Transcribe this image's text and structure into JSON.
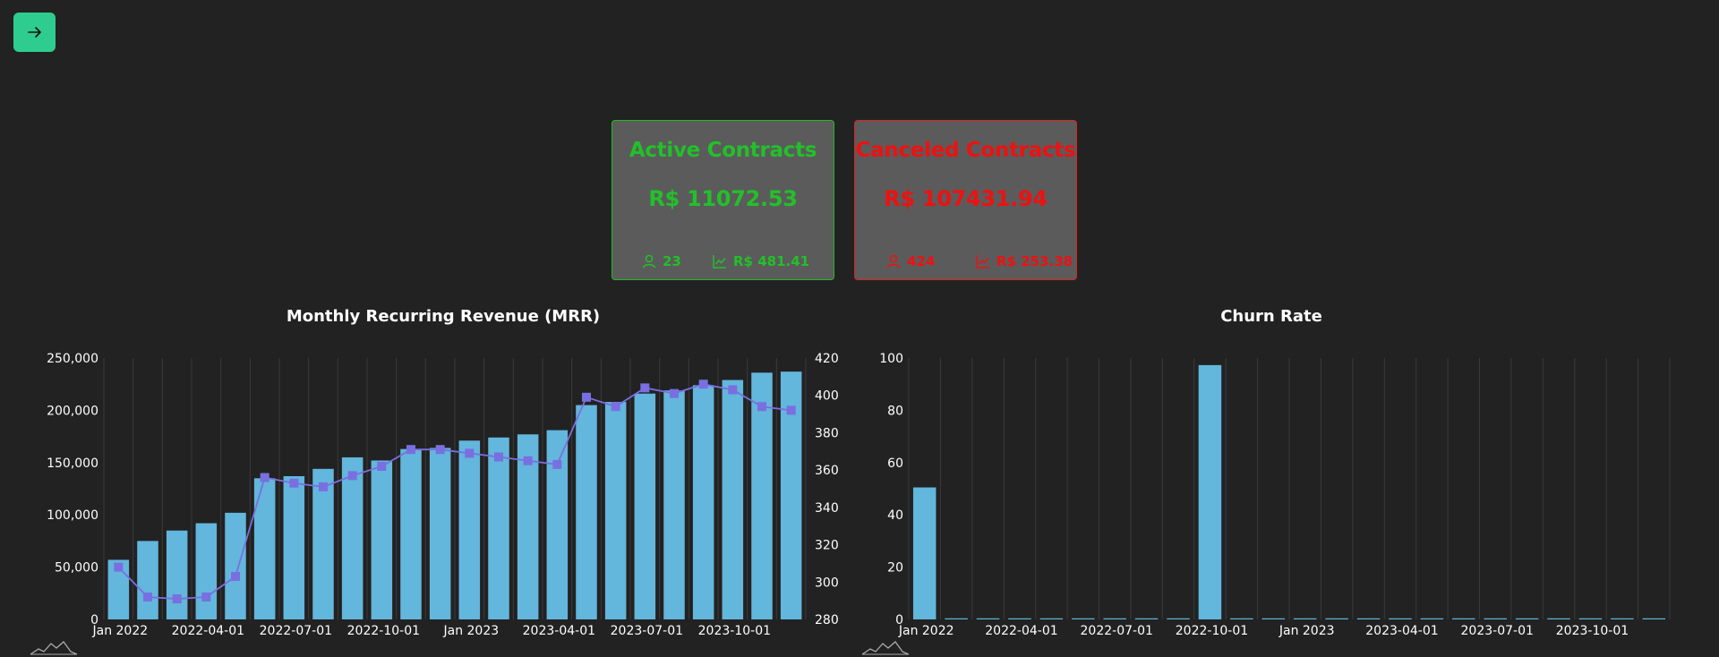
{
  "nav": {
    "icon": "arrow-right-icon"
  },
  "cards": {
    "active": {
      "title": "Active Contracts",
      "value": "R$ 11072.53",
      "count": "23",
      "average": "R$ 481.41",
      "color": "#22c02a"
    },
    "canceled": {
      "title": "Canceled Contracts",
      "value": "R$ 107431.94",
      "count": "424",
      "average": "R$ 253.38",
      "color": "#ee1111"
    }
  },
  "chart_data": [
    {
      "type": "bar",
      "title": "Monthly Recurring Revenue (MRR)",
      "x_tick_labels": [
        "Jan 2022",
        "2022-04-01",
        "2022-07-01",
        "2022-10-01",
        "Jan 2023",
        "2023-04-01",
        "2023-07-01",
        "2023-10-01"
      ],
      "categories": [
        "2022-01",
        "2022-02",
        "2022-03",
        "2022-04",
        "2022-05",
        "2022-06",
        "2022-07",
        "2022-08",
        "2022-09",
        "2022-10",
        "2022-11",
        "2022-12",
        "2023-01",
        "2023-02",
        "2023-03",
        "2023-04",
        "2023-05",
        "2023-06",
        "2023-07",
        "2023-08",
        "2023-09",
        "2023-10",
        "2023-11",
        "2023-12"
      ],
      "series": [
        {
          "type": "bar",
          "axis": "left",
          "color": "#63b6dc",
          "values": [
            57000,
            75000,
            85000,
            92000,
            102000,
            135000,
            137000,
            144000,
            155000,
            152000,
            163000,
            164000,
            171000,
            174000,
            177000,
            181000,
            205000,
            208000,
            216000,
            219000,
            224000,
            229000,
            236000,
            237000
          ]
        },
        {
          "type": "line",
          "axis": "right",
          "color": "#7a6fe0",
          "values": [
            308,
            292,
            291,
            292,
            303,
            356,
            353,
            351,
            357,
            362,
            371,
            371,
            369,
            367,
            365,
            363,
            399,
            394,
            404,
            401,
            406,
            403,
            394,
            392
          ]
        }
      ],
      "ylim": [
        0,
        250000
      ],
      "y2lim": [
        280,
        420
      ],
      "y_ticks": [
        "0",
        "50,000",
        "100,000",
        "150,000",
        "200,000",
        "250,000"
      ],
      "y2_ticks": [
        "280",
        "300",
        "320",
        "340",
        "360",
        "380",
        "400",
        "420"
      ],
      "grid": "vertical"
    },
    {
      "type": "bar",
      "title": "Churn Rate",
      "x_tick_labels": [
        "Jan 2022",
        "2022-04-01",
        "2022-07-01",
        "2022-10-01",
        "Jan 2023",
        "2023-04-01",
        "2023-07-01",
        "2023-10-01"
      ],
      "categories": [
        "2022-01",
        "2022-02",
        "2022-03",
        "2022-04",
        "2022-05",
        "2022-06",
        "2022-07",
        "2022-08",
        "2022-09",
        "2022-10",
        "2022-11",
        "2022-12",
        "2023-01",
        "2023-02",
        "2023-03",
        "2023-04",
        "2023-05",
        "2023-06",
        "2023-07",
        "2023-08",
        "2023-09",
        "2023-10",
        "2023-11",
        "2023-12"
      ],
      "series": [
        {
          "type": "bar",
          "color": "#63b6dc",
          "values": [
            50.5,
            0,
            0,
            0,
            0,
            0,
            0,
            0,
            0,
            97.3,
            0,
            0,
            0,
            0,
            0,
            0,
            0,
            0,
            0,
            0,
            0,
            0,
            0,
            0
          ]
        }
      ],
      "ylim": [
        0,
        100
      ],
      "y_ticks": [
        "0",
        "20",
        "40",
        "60",
        "80",
        "100"
      ],
      "grid": "vertical"
    }
  ]
}
